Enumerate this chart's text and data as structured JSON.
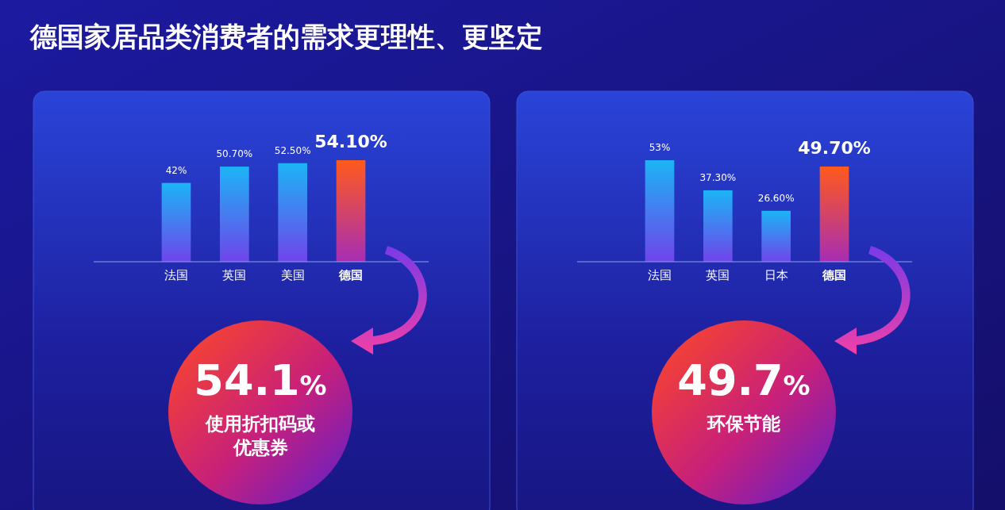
{
  "chart_data": [
    {
      "type": "bar",
      "title": "德国家居品类消费者的需求更理性、更坚定",
      "categories": [
        "法国",
        "英国",
        "美国",
        "德国"
      ],
      "values": [
        42,
        50.7,
        52.5,
        54.1
      ],
      "value_labels": [
        "42%",
        "50.70%",
        "52.50%",
        "54.10%"
      ],
      "colors": [
        "#1cb4f6",
        "#1cb4f6",
        "#1cb4f6",
        "#ff5a1c"
      ],
      "annotations": [
        "54.1%",
        "使用折扣码或优惠券"
      ]
    },
    {
      "type": "bar",
      "categories": [
        "法国",
        "英国",
        "日本",
        "德国"
      ],
      "values": [
        53,
        37.3,
        26.6,
        49.7
      ],
      "value_labels": [
        "53%",
        "37.30%",
        "26.60%",
        "49.70%"
      ],
      "colors": [
        "#1cb4f6",
        "#1cb4f6",
        "#1cb4f6",
        "#ff5a1c"
      ],
      "annotations": [
        "49.7%",
        "环保节能"
      ]
    }
  ]
}
